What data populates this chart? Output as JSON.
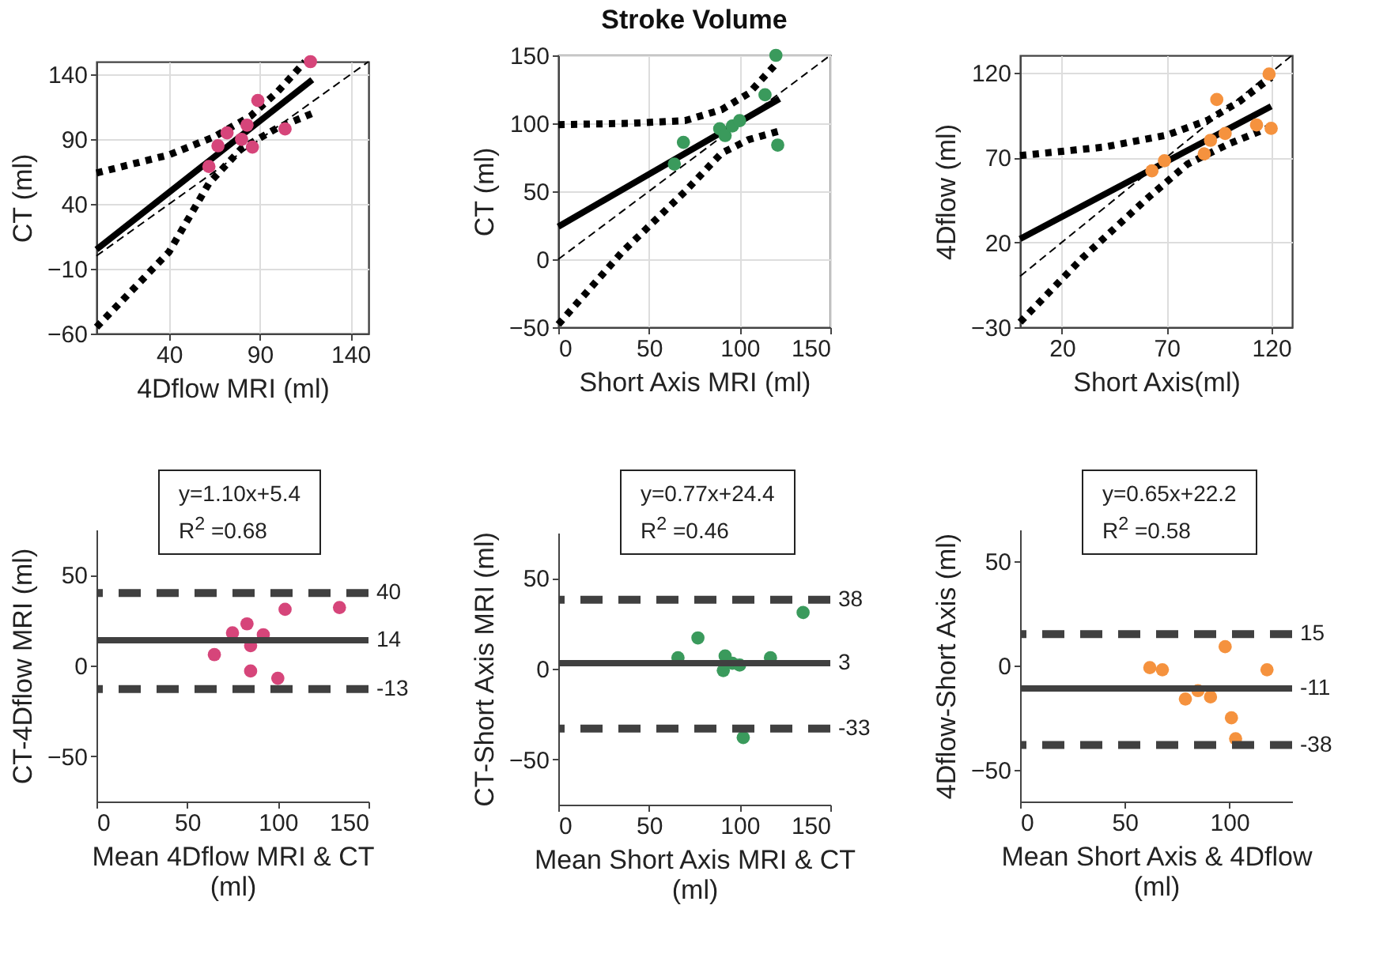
{
  "chart_data": [
    {
      "type": "scatter",
      "title": null,
      "xlabel": "4Dflow MRI (ml)",
      "ylabel": "CT (ml)",
      "xlim": [
        0,
        150
      ],
      "ylim": [
        -60,
        150
      ],
      "xticks": [
        40,
        90,
        140
      ],
      "yticks": [
        -60,
        -10,
        40,
        90,
        140
      ],
      "grid": true,
      "marker": "circle",
      "series": [
        {
          "type": "scatter",
          "color": "#d6457a",
          "x": [
            62,
            67,
            72,
            80,
            83,
            86,
            89,
            104,
            118
          ],
          "values": [
            69,
            85,
            95,
            90,
            101,
            84,
            120,
            98,
            150
          ]
        },
        {
          "type": "line",
          "marker": "none",
          "color": "#000000",
          "line_style": "dashed",
          "x": [
            0,
            150
          ],
          "values": [
            0,
            150
          ]
        },
        {
          "type": "line",
          "marker": "none",
          "color": "#000000",
          "line_style": "solid",
          "x": [
            0,
            119
          ],
          "values": [
            5,
            136
          ]
        },
        {
          "type": "line",
          "marker": "none",
          "color": "#000000",
          "line_style": "dotted",
          "x": [
            0,
            40,
            65,
            85,
            100,
            115
          ],
          "values": [
            64,
            78,
            92,
            108,
            127,
            150
          ]
        },
        {
          "type": "line",
          "marker": "none",
          "color": "#000000",
          "line_style": "dotted",
          "x": [
            0,
            40,
            62,
            80,
            100,
            119
          ],
          "values": [
            -55,
            3,
            56,
            83,
            99,
            110
          ]
        }
      ]
    },
    {
      "type": "scatter",
      "title": "Stroke Volume",
      "xlabel": "Short Axis MRI (ml)",
      "ylabel": "CT  (ml)",
      "xlim": [
        0,
        150
      ],
      "ylim": [
        -50,
        150
      ],
      "xticks": [
        0,
        50,
        100,
        150
      ],
      "yticks": [
        -50,
        0,
        50,
        100,
        150
      ],
      "grid": true,
      "marker": "circle",
      "series": [
        {
          "type": "scatter",
          "color": "#3a9a5c",
          "x": [
            64,
            69,
            89,
            92,
            96,
            100,
            114,
            120,
            121
          ],
          "values": [
            70,
            86,
            96,
            91,
            98,
            102,
            121,
            150,
            84
          ]
        },
        {
          "type": "line",
          "marker": "none",
          "color": "#000000",
          "line_style": "dashed",
          "x": [
            0,
            150
          ],
          "values": [
            0,
            150
          ]
        },
        {
          "type": "line",
          "marker": "none",
          "color": "#000000",
          "line_style": "solid",
          "x": [
            0,
            122
          ],
          "values": [
            24,
            118
          ]
        },
        {
          "type": "line",
          "marker": "none",
          "color": "#000000",
          "line_style": "dotted",
          "x": [
            0,
            40,
            70,
            90,
            105,
            121
          ],
          "values": [
            99,
            100,
            102,
            110,
            122,
            145
          ]
        },
        {
          "type": "line",
          "marker": "none",
          "color": "#000000",
          "line_style": "dotted",
          "x": [
            0,
            35,
            70,
            90,
            105,
            121
          ],
          "values": [
            -48,
            5,
            50,
            78,
            88,
            94
          ]
        }
      ]
    },
    {
      "type": "scatter",
      "title": null,
      "xlabel": "Short Axis(ml)",
      "ylabel": "4Dflow (ml)",
      "xlim": [
        0,
        130
      ],
      "ylim": [
        -30,
        130
      ],
      "xticks": [
        20,
        70,
        120
      ],
      "yticks": [
        -30,
        20,
        70,
        120
      ],
      "grid": true,
      "marker": "circle",
      "series": [
        {
          "type": "scatter",
          "color": "#f5923e",
          "x": [
            63,
            69,
            88,
            91,
            94,
            98,
            113,
            119,
            120
          ],
          "values": [
            62,
            68,
            72,
            80,
            104,
            84,
            89,
            119,
            87
          ]
        },
        {
          "type": "line",
          "marker": "none",
          "color": "#000000",
          "line_style": "dashed",
          "x": [
            0,
            130
          ],
          "values": [
            0,
            130
          ]
        },
        {
          "type": "line",
          "marker": "none",
          "color": "#000000",
          "line_style": "solid",
          "x": [
            0,
            120
          ],
          "values": [
            22,
            100
          ]
        },
        {
          "type": "line",
          "marker": "none",
          "color": "#000000",
          "line_style": "dotted",
          "x": [
            0,
            40,
            70,
            90,
            105,
            120
          ],
          "values": [
            71,
            76,
            83,
            92,
            103,
            117
          ]
        },
        {
          "type": "line",
          "marker": "none",
          "color": "#000000",
          "line_style": "dotted",
          "x": [
            0,
            30,
            60,
            80,
            100,
            120
          ],
          "values": [
            -27,
            11,
            45,
            66,
            78,
            88
          ]
        }
      ]
    },
    {
      "type": "scatter",
      "xlabel": "Mean 4Dflow MRI & CT (ml)",
      "ylabel": "CT-4Dflow MRI (ml)",
      "xlim": [
        0,
        150
      ],
      "ylim": [
        -75,
        75
      ],
      "xticks": [
        0,
        50,
        100,
        150
      ],
      "yticks": [
        -50,
        0,
        50
      ],
      "marker": "circle",
      "annotations": [
        "y=1.10x+5.4",
        "R$^{2}$ =0.68"
      ],
      "ref_lines": [
        {
          "axis": "y",
          "value": 40,
          "label": "40",
          "color": "#404040",
          "line_style": "dashed"
        },
        {
          "axis": "y",
          "value": 14,
          "label": "14",
          "color": "#404040",
          "line_style": "solid"
        },
        {
          "axis": "y",
          "value": -13,
          "label": "-13",
          "color": "#404040",
          "line_style": "dashed"
        }
      ],
      "series": [
        {
          "type": "scatter",
          "color": "#d6457a",
          "x": [
            65,
            75,
            83,
            85,
            92,
            85,
            100,
            104,
            134
          ],
          "values": [
            6,
            18,
            23,
            11,
            17,
            -3,
            -7,
            31,
            32
          ]
        }
      ]
    },
    {
      "type": "scatter",
      "xlabel": "Mean Short Axis MRI & CT (ml)",
      "ylabel": "CT-Short Axis MRI (ml)",
      "xlim": [
        0,
        150
      ],
      "ylim": [
        -75,
        75
      ],
      "xticks": [
        0,
        50,
        100,
        150
      ],
      "yticks": [
        -50,
        0,
        50
      ],
      "marker": "circle",
      "annotations": [
        "y=0.77x+24.4",
        "R$^{2}$ =0.46"
      ],
      "ref_lines": [
        {
          "axis": "y",
          "value": 38,
          "label": "38",
          "color": "#404040",
          "line_style": "dashed"
        },
        {
          "axis": "y",
          "value": 3,
          "label": "3",
          "color": "#404040",
          "line_style": "solid"
        },
        {
          "axis": "y",
          "value": -33,
          "label": "-33",
          "color": "#404040",
          "line_style": "dashed"
        }
      ],
      "series": [
        {
          "type": "scatter",
          "color": "#3a9a5c",
          "x": [
            66,
            77,
            92,
            91,
            96,
            100,
            117,
            135,
            102
          ],
          "values": [
            6,
            17,
            7,
            -1,
            3,
            2,
            6,
            31,
            -38
          ]
        }
      ]
    },
    {
      "type": "scatter",
      "xlabel": "Mean Short Axis & 4Dflow (ml)",
      "ylabel": "4Dflow-Short Axis (ml)",
      "xlim": [
        0,
        130
      ],
      "ylim": [
        -65,
        65
      ],
      "xticks": [
        0,
        50,
        100
      ],
      "yticks": [
        -50,
        0,
        50
      ],
      "marker": "circle",
      "annotations": [
        "y=0.65x+22.2",
        "R$^{2}$ =0.58"
      ],
      "ref_lines": [
        {
          "axis": "y",
          "value": 15,
          "label": "15",
          "color": "#404040",
          "line_style": "dashed"
        },
        {
          "axis": "y",
          "value": -11,
          "label": "-11",
          "color": "#404040",
          "line_style": "solid"
        },
        {
          "axis": "y",
          "value": -38,
          "label": "-38",
          "color": "#404040",
          "line_style": "dashed"
        }
      ],
      "series": [
        {
          "type": "scatter",
          "color": "#f5923e",
          "x": [
            62,
            68,
            79,
            85,
            91,
            98,
            101,
            103,
            118
          ],
          "values": [
            -1,
            -2,
            -16,
            -12,
            -15,
            9,
            -25,
            -35,
            -2
          ]
        }
      ]
    }
  ]
}
